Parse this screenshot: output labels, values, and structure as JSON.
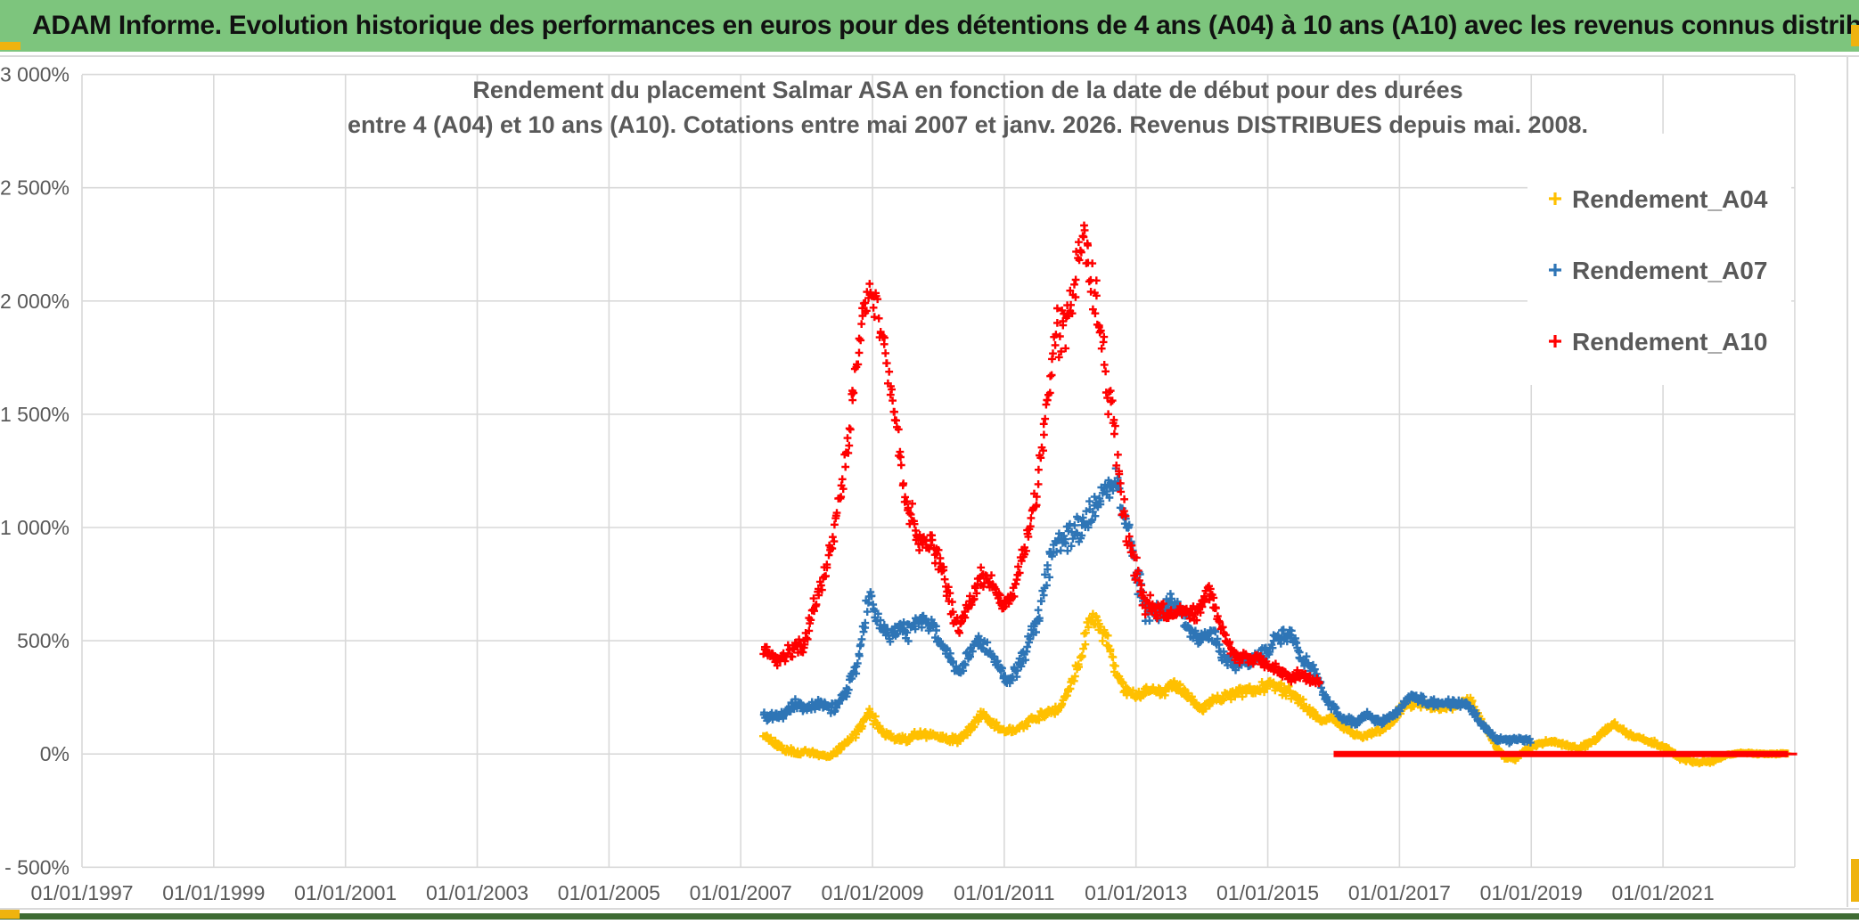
{
  "banner": {
    "text": "ADAM Informe. Evolution historique des performances en euros pour des détentions de 4 ans (A04) à 10 ans (A10) avec les revenus connus distribués",
    "bg_color": "#7DC57D",
    "text_color": "#111111"
  },
  "chrome": {
    "accent_color": "#EFB30E",
    "bottom_bar_color": "#3E6B33",
    "divider_color": "#D9D9D9"
  },
  "chart_data": {
    "type": "scatter",
    "title_line1": "Rendement du placement Salmar ASA en fonction de la date de début pour des durées",
    "title_line2": "entre 4 (A04) et 10 ans (A10). Cotations entre mai 2007 et janv. 2026. Revenus DISTRIBUES depuis mai. 2008.",
    "title_color": "#595959",
    "grid_color": "#D9D9D9",
    "label_color": "#595959",
    "grid_on": true,
    "x_axis": {
      "gridline_years": [
        1997,
        1999,
        2001,
        2003,
        2005,
        2007,
        2009,
        2011,
        2013,
        2015,
        2017,
        2019,
        2021,
        2023
      ],
      "tick_labels": [
        "01/01/1997",
        "01/01/1999",
        "01/01/2001",
        "01/01/2003",
        "01/01/2005",
        "01/01/2007",
        "01/01/2009",
        "01/01/2011",
        "01/01/2013",
        "01/01/2015",
        "01/01/2017",
        "01/01/2019",
        "01/01/2021"
      ],
      "tick_years": [
        1997,
        1999,
        2001,
        2003,
        2005,
        2007,
        2009,
        2011,
        2013,
        2015,
        2017,
        2019,
        2021
      ],
      "range_years": [
        1997,
        2023.07
      ]
    },
    "y_axis": {
      "tick_labels": [
        "3 000%",
        "2 500%",
        "2 000%",
        "1 500%",
        "1 000%",
        "500%",
        "0%",
        "- 500%"
      ],
      "tick_values": [
        3000,
        2500,
        2000,
        1500,
        1000,
        500,
        0,
        -500
      ],
      "range": [
        -500,
        3000
      ]
    },
    "legend": {
      "position": "right-top",
      "entries": [
        {
          "label": "Rendement_A04",
          "color": "#FFC000",
          "marker": "plus"
        },
        {
          "label": "Rendement_A07",
          "color": "#2E75B6",
          "marker": "plus"
        },
        {
          "label": "Rendement_A10",
          "color": "#FF0000",
          "marker": "plus"
        }
      ]
    },
    "series": [
      {
        "name": "Rendement_A04",
        "color": "#FFC000",
        "marker": "plus",
        "seed": 7,
        "anchors": [
          [
            2007.35,
            85,
            18
          ],
          [
            2007.6,
            20,
            15
          ],
          [
            2007.85,
            -5,
            12
          ],
          [
            2008.1,
            0,
            12
          ],
          [
            2008.35,
            -10,
            10
          ],
          [
            2008.55,
            30,
            15
          ],
          [
            2008.75,
            80,
            20
          ],
          [
            2008.95,
            200,
            30
          ],
          [
            2009.1,
            140,
            25
          ],
          [
            2009.3,
            90,
            20
          ],
          [
            2009.5,
            70,
            18
          ],
          [
            2009.7,
            95,
            18
          ],
          [
            2009.9,
            80,
            16
          ],
          [
            2010.1,
            70,
            16
          ],
          [
            2010.3,
            60,
            15
          ],
          [
            2010.5,
            100,
            18
          ],
          [
            2010.65,
            150,
            22
          ],
          [
            2010.8,
            130,
            18
          ],
          [
            2011.0,
            95,
            16
          ],
          [
            2011.2,
            120,
            18
          ],
          [
            2011.4,
            150,
            20
          ],
          [
            2011.6,
            180,
            22
          ],
          [
            2011.8,
            200,
            22
          ],
          [
            2012.0,
            320,
            35
          ],
          [
            2012.15,
            450,
            45
          ],
          [
            2012.3,
            650,
            50
          ],
          [
            2012.42,
            560,
            45
          ],
          [
            2012.55,
            500,
            45
          ],
          [
            2012.7,
            330,
            35
          ],
          [
            2012.85,
            280,
            30
          ],
          [
            2013.0,
            250,
            28
          ],
          [
            2013.2,
            270,
            28
          ],
          [
            2013.4,
            250,
            25
          ],
          [
            2013.6,
            280,
            28
          ],
          [
            2013.8,
            250,
            25
          ],
          [
            2014.0,
            210,
            22
          ],
          [
            2014.2,
            260,
            25
          ],
          [
            2014.4,
            260,
            28
          ],
          [
            2014.6,
            280,
            28
          ],
          [
            2014.8,
            300,
            30
          ],
          [
            2015.0,
            330,
            30
          ],
          [
            2015.2,
            290,
            28
          ],
          [
            2015.4,
            250,
            25
          ],
          [
            2015.6,
            180,
            22
          ],
          [
            2015.8,
            140,
            18
          ],
          [
            2016.0,
            150,
            18
          ],
          [
            2016.2,
            100,
            15
          ],
          [
            2016.4,
            70,
            14
          ],
          [
            2016.6,
            90,
            15
          ],
          [
            2016.8,
            130,
            16
          ],
          [
            2017.05,
            230,
            20
          ],
          [
            2017.25,
            230,
            20
          ],
          [
            2017.5,
            205,
            18
          ],
          [
            2017.8,
            215,
            18
          ],
          [
            2018.05,
            240,
            20
          ],
          [
            2018.25,
            130,
            16
          ],
          [
            2018.45,
            30,
            12
          ],
          [
            2018.6,
            -20,
            10
          ],
          [
            2018.75,
            -25,
            10
          ],
          [
            2018.9,
            15,
            10
          ],
          [
            2019.1,
            40,
            10
          ],
          [
            2019.3,
            55,
            10
          ],
          [
            2019.5,
            45,
            10
          ],
          [
            2019.7,
            35,
            10
          ],
          [
            2019.9,
            60,
            12
          ],
          [
            2020.1,
            100,
            14
          ],
          [
            2020.25,
            130,
            14
          ],
          [
            2020.45,
            90,
            12
          ],
          [
            2020.65,
            70,
            12
          ],
          [
            2020.85,
            50,
            10
          ],
          [
            2021.05,
            20,
            8
          ],
          [
            2021.25,
            -25,
            8
          ],
          [
            2021.5,
            -40,
            8
          ],
          [
            2021.75,
            -30,
            8
          ],
          [
            2021.95,
            -5,
            6
          ],
          [
            2022.2,
            5,
            5
          ],
          [
            2022.5,
            5,
            5
          ],
          [
            2022.9,
            5,
            5
          ]
        ]
      },
      {
        "name": "Rendement_A07",
        "color": "#2E75B6",
        "marker": "plus",
        "seed": 13,
        "anchors": [
          [
            2007.35,
            170,
            25
          ],
          [
            2007.6,
            160,
            22
          ],
          [
            2007.8,
            200,
            25
          ],
          [
            2008.0,
            185,
            22
          ],
          [
            2008.2,
            210,
            25
          ],
          [
            2008.4,
            200,
            25
          ],
          [
            2008.6,
            260,
            30
          ],
          [
            2008.8,
            420,
            45
          ],
          [
            2008.95,
            700,
            60
          ],
          [
            2009.1,
            620,
            50
          ],
          [
            2009.25,
            560,
            45
          ],
          [
            2009.4,
            600,
            45
          ],
          [
            2009.55,
            560,
            40
          ],
          [
            2009.7,
            600,
            40
          ],
          [
            2009.85,
            570,
            40
          ],
          [
            2010.0,
            520,
            35
          ],
          [
            2010.15,
            450,
            35
          ],
          [
            2010.3,
            360,
            30
          ],
          [
            2010.45,
            420,
            35
          ],
          [
            2010.6,
            470,
            35
          ],
          [
            2010.75,
            430,
            30
          ],
          [
            2010.9,
            370,
            30
          ],
          [
            2011.05,
            310,
            28
          ],
          [
            2011.2,
            380,
            35
          ],
          [
            2011.35,
            480,
            45
          ],
          [
            2011.5,
            600,
            60
          ],
          [
            2011.65,
            800,
            70
          ],
          [
            2011.8,
            950,
            70
          ],
          [
            2011.95,
            1000,
            80
          ],
          [
            2012.1,
            1050,
            70
          ],
          [
            2012.25,
            1100,
            70
          ],
          [
            2012.4,
            1150,
            80
          ],
          [
            2012.55,
            1150,
            70
          ],
          [
            2012.7,
            1180,
            60
          ],
          [
            2012.85,
            1000,
            80
          ],
          [
            2013.0,
            780,
            70
          ],
          [
            2013.15,
            620,
            50
          ],
          [
            2013.35,
            600,
            45
          ],
          [
            2013.55,
            640,
            45
          ],
          [
            2013.75,
            560,
            40
          ],
          [
            2013.95,
            500,
            40
          ],
          [
            2014.15,
            560,
            40
          ],
          [
            2014.35,
            430,
            35
          ],
          [
            2014.55,
            390,
            30
          ],
          [
            2014.75,
            430,
            35
          ],
          [
            2014.95,
            480,
            40
          ],
          [
            2015.15,
            540,
            40
          ],
          [
            2015.35,
            520,
            40
          ],
          [
            2015.5,
            420,
            35
          ],
          [
            2015.7,
            340,
            30
          ],
          [
            2015.9,
            230,
            25
          ],
          [
            2016.1,
            160,
            20
          ],
          [
            2016.3,
            130,
            18
          ],
          [
            2016.5,
            160,
            20
          ],
          [
            2016.7,
            140,
            18
          ],
          [
            2016.9,
            180,
            20
          ],
          [
            2017.1,
            260,
            22
          ],
          [
            2017.25,
            260,
            22
          ],
          [
            2017.45,
            230,
            20
          ],
          [
            2017.65,
            225,
            18
          ],
          [
            2017.85,
            235,
            20
          ],
          [
            2018.05,
            220,
            20
          ],
          [
            2018.25,
            120,
            15
          ],
          [
            2018.45,
            55,
            12
          ],
          [
            2018.65,
            50,
            12
          ],
          [
            2018.85,
            65,
            12
          ],
          [
            2019.0,
            55,
            10
          ]
        ]
      },
      {
        "name": "Rendement_A10",
        "color": "#FF0000",
        "marker": "plus",
        "seed": 99,
        "anchors": [
          [
            2007.35,
            470,
            40
          ],
          [
            2007.55,
            420,
            35
          ],
          [
            2007.75,
            480,
            40
          ],
          [
            2007.95,
            520,
            45
          ],
          [
            2008.15,
            700,
            50
          ],
          [
            2008.4,
            900,
            60
          ],
          [
            2008.6,
            1250,
            80
          ],
          [
            2008.8,
            1800,
            100
          ],
          [
            2008.95,
            2050,
            70
          ],
          [
            2009.05,
            1980,
            90
          ],
          [
            2009.2,
            1700,
            80
          ],
          [
            2009.35,
            1450,
            60
          ],
          [
            2009.5,
            1100,
            70
          ],
          [
            2009.7,
            950,
            60
          ],
          [
            2009.9,
            980,
            50
          ],
          [
            2010.1,
            800,
            50
          ],
          [
            2010.3,
            560,
            40
          ],
          [
            2010.5,
            700,
            45
          ],
          [
            2010.65,
            800,
            45
          ],
          [
            2010.8,
            780,
            40
          ],
          [
            2011.0,
            650,
            40
          ],
          [
            2011.15,
            700,
            45
          ],
          [
            2011.3,
            850,
            50
          ],
          [
            2011.5,
            1100,
            80
          ],
          [
            2011.65,
            1500,
            120
          ],
          [
            2011.8,
            1850,
            120
          ],
          [
            2011.95,
            1900,
            130
          ],
          [
            2012.1,
            2100,
            150
          ],
          [
            2012.2,
            2250,
            130
          ],
          [
            2012.35,
            2050,
            150
          ],
          [
            2012.5,
            1800,
            120
          ],
          [
            2012.65,
            1550,
            100
          ],
          [
            2012.8,
            1200,
            120
          ],
          [
            2012.95,
            950,
            100
          ],
          [
            2013.1,
            700,
            60
          ],
          [
            2013.3,
            640,
            50
          ],
          [
            2013.5,
            600,
            45
          ],
          [
            2013.7,
            650,
            45
          ],
          [
            2013.9,
            600,
            40
          ],
          [
            2014.1,
            680,
            45
          ],
          [
            2014.3,
            520,
            40
          ],
          [
            2014.5,
            420,
            35
          ],
          [
            2014.7,
            440,
            35
          ],
          [
            2014.9,
            420,
            30
          ],
          [
            2015.1,
            380,
            30
          ],
          [
            2015.3,
            350,
            28
          ],
          [
            2015.55,
            370,
            30
          ],
          [
            2015.8,
            330,
            25
          ]
        ],
        "flat_segment": {
          "from_year": 2016.0,
          "to_year": 2022.9,
          "value": 0
        }
      }
    ]
  }
}
